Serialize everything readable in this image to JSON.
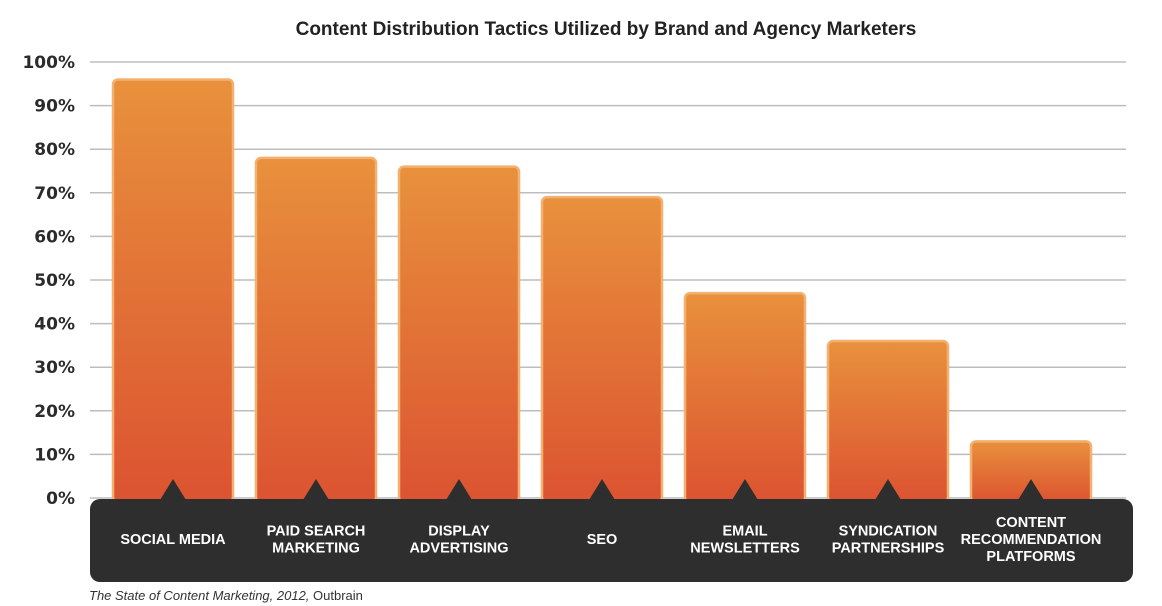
{
  "chart_data": {
    "type": "bar",
    "title": "Content Distribution Tactics Utilized by Brand and Agency Marketers",
    "categories": [
      [
        "SOCIAL MEDIA"
      ],
      [
        "PAID SEARCH",
        "MARKETING"
      ],
      [
        "DISPLAY",
        "ADVERTISING"
      ],
      [
        "SEO"
      ],
      [
        "EMAIL",
        "NEWSLETTERS"
      ],
      [
        "SYNDICATION",
        "PARTNERSHIPS"
      ],
      [
        "CONTENT",
        "RECOMMENDATION",
        "PLATFORMS"
      ]
    ],
    "values": [
      96,
      78,
      76,
      69,
      47,
      36,
      13
    ],
    "ylim": [
      0,
      100
    ],
    "yticks": [
      "0%",
      "10%",
      "20%",
      "30%",
      "40%",
      "50%",
      "60%",
      "70%",
      "80%",
      "90%",
      "100%"
    ],
    "grid": true,
    "xlabel": "",
    "ylabel": "",
    "colors": {
      "bar_top": "#e8913c",
      "bar_bottom": "#dc5331",
      "bar_stroke": "#f4b070",
      "grid": "#bdbdbd",
      "label_band": "#2e2e2e",
      "label_text": "#ffffff"
    }
  },
  "source": {
    "italic": "The State of Content Marketing, 2012,",
    "plain": " Outbrain"
  }
}
